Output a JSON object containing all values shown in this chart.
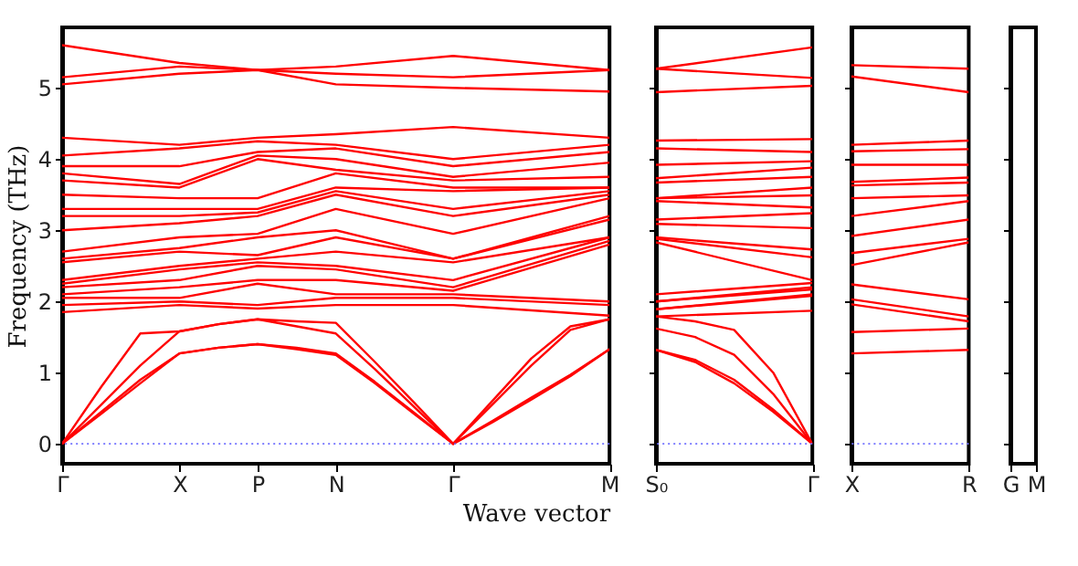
{
  "chart_data": [
    {
      "type": "line",
      "xlabel": "Wave vector",
      "ylabel": "Frequency (THz)",
      "ylim": [
        -0.28,
        5.85
      ],
      "yticks": [
        0,
        1,
        2,
        3,
        4,
        5
      ],
      "categories": [
        "Γ",
        null,
        null,
        "X",
        null,
        "P",
        null,
        "N",
        null,
        null,
        "Γ",
        null,
        null,
        null,
        "M"
      ],
      "ref_lines": [
        {
          "axis": "y",
          "value": 0,
          "color": "#6f6fff",
          "line_style": "dotted"
        }
      ],
      "series": [
        {
          "color": "#ff0000",
          "values": [
            0,
            0.42,
            0.85,
            1.27,
            1.35,
            1.4,
            1.33,
            1.25,
            0.85,
            0.42,
            0,
            0.3,
            0.62,
            0.95,
            1.33
          ]
        },
        {
          "color": "#ff0000",
          "values": [
            0,
            0.45,
            0.9,
            1.27,
            1.35,
            1.4,
            1.35,
            1.27,
            0.87,
            0.44,
            0,
            0.32,
            0.65,
            0.97,
            1.33
          ]
        },
        {
          "color": "#ff0000",
          "values": [
            0,
            0.55,
            1.1,
            1.58,
            1.68,
            1.75,
            1.65,
            1.55,
            1.05,
            0.52,
            0,
            0.55,
            1.1,
            1.6,
            1.75
          ]
        },
        {
          "color": "#ff0000",
          "values": [
            0,
            0.8,
            1.55,
            1.58,
            1.68,
            1.75,
            1.72,
            1.7,
            1.15,
            0.58,
            0,
            0.6,
            1.2,
            1.65,
            1.75
          ]
        },
        {
          "color": "#ff0000",
          "values": [
            1.85,
            null,
            null,
            1.95,
            null,
            1.9,
            null,
            1.95,
            null,
            null,
            1.95,
            null,
            null,
            null,
            1.8
          ]
        },
        {
          "color": "#ff0000",
          "values": [
            1.95,
            null,
            null,
            2.0,
            null,
            1.95,
            null,
            2.05,
            null,
            null,
            2.05,
            null,
            null,
            null,
            1.95
          ]
        },
        {
          "color": "#ff0000",
          "values": [
            2.05,
            null,
            null,
            2.05,
            null,
            2.25,
            null,
            2.1,
            null,
            null,
            2.1,
            null,
            null,
            null,
            2.0
          ]
        },
        {
          "color": "#ff0000",
          "values": [
            2.1,
            null,
            null,
            2.2,
            null,
            2.3,
            null,
            2.3,
            null,
            null,
            2.15,
            null,
            null,
            null,
            2.8
          ]
        },
        {
          "color": "#ff0000",
          "values": [
            2.2,
            null,
            null,
            2.3,
            null,
            2.5,
            null,
            2.45,
            null,
            null,
            2.2,
            null,
            null,
            null,
            2.85
          ]
        },
        {
          "color": "#ff0000",
          "values": [
            2.25,
            null,
            null,
            2.45,
            null,
            2.55,
            null,
            2.5,
            null,
            null,
            2.3,
            null,
            null,
            null,
            2.9
          ]
        },
        {
          "color": "#ff0000",
          "values": [
            2.3,
            null,
            null,
            2.5,
            null,
            2.6,
            null,
            2.7,
            null,
            null,
            2.55,
            null,
            null,
            null,
            2.9
          ]
        },
        {
          "color": "#ff0000",
          "values": [
            2.55,
            null,
            null,
            2.7,
            null,
            2.65,
            null,
            2.9,
            null,
            null,
            2.6,
            null,
            null,
            null,
            3.15
          ]
        },
        {
          "color": "#ff0000",
          "values": [
            2.6,
            null,
            null,
            2.75,
            null,
            2.9,
            null,
            3.0,
            null,
            null,
            2.6,
            null,
            null,
            null,
            3.2
          ]
        },
        {
          "color": "#ff0000",
          "values": [
            2.7,
            null,
            null,
            2.9,
            null,
            2.95,
            null,
            3.3,
            null,
            null,
            2.95,
            null,
            null,
            null,
            3.45
          ]
        },
        {
          "color": "#ff0000",
          "values": [
            3.0,
            null,
            null,
            3.1,
            null,
            3.2,
            null,
            3.5,
            null,
            null,
            3.2,
            null,
            null,
            null,
            3.5
          ]
        },
        {
          "color": "#ff0000",
          "values": [
            3.2,
            null,
            null,
            3.2,
            null,
            3.25,
            null,
            3.55,
            null,
            null,
            3.3,
            null,
            null,
            null,
            3.55
          ]
        },
        {
          "color": "#ff0000",
          "values": [
            3.3,
            null,
            null,
            3.3,
            null,
            3.3,
            null,
            3.6,
            null,
            null,
            3.55,
            null,
            null,
            null,
            3.6
          ]
        },
        {
          "color": "#ff0000",
          "values": [
            3.5,
            null,
            null,
            3.45,
            null,
            3.45,
            null,
            3.8,
            null,
            null,
            3.6,
            null,
            null,
            null,
            3.6
          ]
        },
        {
          "color": "#ff0000",
          "values": [
            3.7,
            null,
            null,
            3.6,
            null,
            4.0,
            null,
            3.85,
            null,
            null,
            3.7,
            null,
            null,
            null,
            3.75
          ]
        },
        {
          "color": "#ff0000",
          "values": [
            3.8,
            null,
            null,
            3.65,
            null,
            4.05,
            null,
            4.0,
            null,
            null,
            3.75,
            null,
            null,
            null,
            3.95
          ]
        },
        {
          "color": "#ff0000",
          "values": [
            3.9,
            null,
            null,
            3.9,
            null,
            4.1,
            null,
            4.15,
            null,
            null,
            3.9,
            null,
            null,
            null,
            4.1
          ]
        },
        {
          "color": "#ff0000",
          "values": [
            4.05,
            null,
            null,
            4.15,
            null,
            4.25,
            null,
            4.2,
            null,
            null,
            4.0,
            null,
            null,
            null,
            4.2
          ]
        },
        {
          "color": "#ff0000",
          "values": [
            4.3,
            null,
            null,
            4.2,
            null,
            4.3,
            null,
            4.35,
            null,
            null,
            4.45,
            null,
            null,
            null,
            4.3
          ]
        },
        {
          "color": "#ff0000",
          "values": [
            5.05,
            null,
            null,
            5.2,
            null,
            5.25,
            null,
            5.05,
            null,
            null,
            5.0,
            null,
            null,
            null,
            4.95
          ]
        },
        {
          "color": "#ff0000",
          "values": [
            5.15,
            null,
            null,
            5.3,
            null,
            5.25,
            null,
            5.2,
            null,
            null,
            5.15,
            null,
            null,
            null,
            5.25
          ]
        },
        {
          "color": "#ff0000",
          "values": [
            5.6,
            null,
            null,
            5.35,
            null,
            5.25,
            null,
            5.3,
            null,
            null,
            5.45,
            null,
            null,
            null,
            5.25
          ]
        }
      ]
    },
    {
      "type": "line",
      "ylim": [
        -0.28,
        5.85
      ],
      "yticks": [
        0,
        1,
        2,
        3,
        4,
        5
      ],
      "tick_labels": "x",
      "categories": [
        "S₀",
        null,
        null,
        null,
        "Γ"
      ],
      "ref_lines": [
        {
          "axis": "y",
          "value": 0,
          "color": "#6f6fff",
          "line_style": "dotted"
        }
      ],
      "series": [
        {
          "color": "#ff0000",
          "values": [
            1.32,
            1.15,
            0.85,
            0.45,
            0
          ]
        },
        {
          "color": "#ff0000",
          "values": [
            1.32,
            1.18,
            0.9,
            0.48,
            0
          ]
        },
        {
          "color": "#ff0000",
          "values": [
            1.62,
            1.5,
            1.25,
            0.7,
            0
          ]
        },
        {
          "color": "#ff0000",
          "values": [
            1.79,
            1.72,
            1.6,
            1.0,
            0
          ]
        },
        {
          "color": "#ff0000",
          "values": [
            1.79,
            null,
            null,
            null,
            1.87
          ]
        },
        {
          "color": "#ff0000",
          "values": [
            1.89,
            null,
            null,
            null,
            2.08
          ]
        },
        {
          "color": "#ff0000",
          "values": [
            1.89,
            null,
            null,
            null,
            2.1
          ]
        },
        {
          "color": "#ff0000",
          "values": [
            2.0,
            null,
            null,
            null,
            2.17
          ]
        },
        {
          "color": "#ff0000",
          "values": [
            2.0,
            null,
            null,
            null,
            2.2
          ]
        },
        {
          "color": "#ff0000",
          "values": [
            2.1,
            null,
            null,
            null,
            2.26
          ]
        },
        {
          "color": "#ff0000",
          "values": [
            2.83,
            null,
            null,
            null,
            2.3
          ]
        },
        {
          "color": "#ff0000",
          "values": [
            2.88,
            null,
            null,
            null,
            2.62
          ]
        },
        {
          "color": "#ff0000",
          "values": [
            2.9,
            null,
            null,
            null,
            2.73
          ]
        },
        {
          "color": "#ff0000",
          "values": [
            3.09,
            null,
            null,
            null,
            3.03
          ]
        },
        {
          "color": "#ff0000",
          "values": [
            3.15,
            null,
            null,
            null,
            3.24
          ]
        },
        {
          "color": "#ff0000",
          "values": [
            3.41,
            null,
            null,
            null,
            3.32
          ]
        },
        {
          "color": "#ff0000",
          "values": [
            3.45,
            null,
            null,
            null,
            3.49
          ]
        },
        {
          "color": "#ff0000",
          "values": [
            3.45,
            null,
            null,
            null,
            3.6
          ]
        },
        {
          "color": "#ff0000",
          "values": [
            3.67,
            null,
            null,
            null,
            3.75
          ]
        },
        {
          "color": "#ff0000",
          "values": [
            3.73,
            null,
            null,
            null,
            3.88
          ]
        },
        {
          "color": "#ff0000",
          "values": [
            3.92,
            null,
            null,
            null,
            3.97
          ]
        },
        {
          "color": "#ff0000",
          "values": [
            4.15,
            null,
            null,
            null,
            4.1
          ]
        },
        {
          "color": "#ff0000",
          "values": [
            4.26,
            null,
            null,
            null,
            4.28
          ]
        },
        {
          "color": "#ff0000",
          "values": [
            4.94,
            null,
            null,
            null,
            5.03
          ]
        },
        {
          "color": "#ff0000",
          "values": [
            5.27,
            null,
            null,
            null,
            5.14
          ]
        },
        {
          "color": "#ff0000",
          "values": [
            5.27,
            null,
            null,
            null,
            5.57
          ]
        }
      ]
    },
    {
      "type": "line",
      "ylim": [
        -0.28,
        5.85
      ],
      "yticks": [
        0,
        1,
        2,
        3,
        4,
        5
      ],
      "tick_labels": "x",
      "categories": [
        "X",
        null,
        null,
        "R"
      ],
      "ref_lines": [
        {
          "axis": "y",
          "value": 0,
          "color": "#6f6fff",
          "line_style": "dotted"
        }
      ],
      "series": [
        {
          "color": "#ff0000",
          "values": [
            1.27,
            null,
            null,
            1.32
          ]
        },
        {
          "color": "#ff0000",
          "values": [
            1.57,
            null,
            null,
            1.62
          ]
        },
        {
          "color": "#ff0000",
          "values": [
            1.96,
            null,
            null,
            1.72
          ]
        },
        {
          "color": "#ff0000",
          "values": [
            2.03,
            null,
            null,
            1.79
          ]
        },
        {
          "color": "#ff0000",
          "values": [
            2.24,
            null,
            null,
            2.03
          ]
        },
        {
          "color": "#ff0000",
          "values": [
            2.51,
            null,
            null,
            2.83
          ]
        },
        {
          "color": "#ff0000",
          "values": [
            2.68,
            null,
            null,
            2.88
          ]
        },
        {
          "color": "#ff0000",
          "values": [
            2.92,
            null,
            null,
            3.15
          ]
        },
        {
          "color": "#ff0000",
          "values": [
            3.2,
            null,
            null,
            3.41
          ]
        },
        {
          "color": "#ff0000",
          "values": [
            3.45,
            null,
            null,
            3.49
          ]
        },
        {
          "color": "#ff0000",
          "values": [
            3.63,
            null,
            null,
            3.67
          ]
        },
        {
          "color": "#ff0000",
          "values": [
            3.68,
            null,
            null,
            3.74
          ]
        },
        {
          "color": "#ff0000",
          "values": [
            3.92,
            null,
            null,
            3.92
          ]
        },
        {
          "color": "#ff0000",
          "values": [
            4.11,
            null,
            null,
            4.14
          ]
        },
        {
          "color": "#ff0000",
          "values": [
            4.2,
            null,
            null,
            4.26
          ]
        },
        {
          "color": "#ff0000",
          "values": [
            5.16,
            null,
            null,
            4.94
          ]
        },
        {
          "color": "#ff0000",
          "values": [
            5.32,
            null,
            null,
            5.27
          ]
        }
      ]
    },
    {
      "type": "line",
      "ylim": [
        -0.28,
        5.85
      ],
      "yticks": [
        0,
        1,
        2,
        3,
        4,
        5
      ],
      "tick_labels": "x",
      "categories": [
        "G",
        "M"
      ]
    }
  ]
}
